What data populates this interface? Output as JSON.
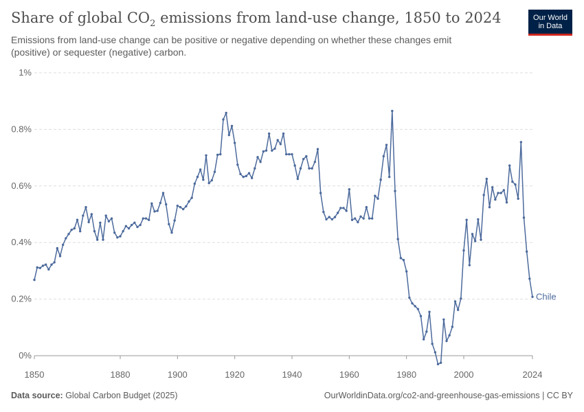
{
  "header": {
    "title_main": "Share of global CO",
    "title_sub": "2",
    "title_rest": " emissions from land-use change, 1850 to 2024",
    "subtitle": "Emissions from land-use change can be positive or negative depending on whether these changes emit (positive) or sequester (negative) carbon.",
    "logo_line1": "Our World",
    "logo_line2": "in Data"
  },
  "footer": {
    "source_label": "Data source:",
    "source_value": " Global Carbon Budget (2025)",
    "url": "OurWorldinData.org/co2-and-greenhouse-gas-emissions | CC BY"
  },
  "colors": {
    "series": "#4c6a9c",
    "grid": "#dddddd",
    "axis": "#999999"
  },
  "chart_data": {
    "type": "line",
    "title": "Share of global CO2 emissions from land-use change, 1850 to 2024",
    "xlabel": "",
    "ylabel": "",
    "xlim": [
      1850,
      2024
    ],
    "ylim": [
      0,
      1
    ],
    "x_ticks": [
      1850,
      1880,
      1900,
      1920,
      1940,
      1960,
      1980,
      2000,
      2024
    ],
    "x_tick_labels": [
      "1850",
      "1880",
      "1900",
      "1920",
      "1940",
      "1960",
      "1980",
      "2000",
      "2024"
    ],
    "y_ticks": [
      0,
      0.2,
      0.4,
      0.6,
      0.8,
      1
    ],
    "y_tick_labels": [
      "0%",
      "0.2%",
      "0.4%",
      "0.6%",
      "0.8%",
      "1%"
    ],
    "grid": "horizontal-dashed",
    "legend": "inline-end-label",
    "series": [
      {
        "name": "Chile",
        "x": [
          1850,
          1851,
          1852,
          1853,
          1854,
          1855,
          1856,
          1857,
          1858,
          1859,
          1860,
          1861,
          1862,
          1863,
          1864,
          1865,
          1866,
          1867,
          1868,
          1869,
          1870,
          1871,
          1872,
          1873,
          1874,
          1875,
          1876,
          1877,
          1878,
          1879,
          1880,
          1881,
          1882,
          1883,
          1884,
          1885,
          1886,
          1887,
          1888,
          1889,
          1890,
          1891,
          1892,
          1893,
          1894,
          1895,
          1896,
          1897,
          1898,
          1899,
          1900,
          1901,
          1902,
          1903,
          1904,
          1905,
          1906,
          1907,
          1908,
          1909,
          1910,
          1911,
          1912,
          1913,
          1914,
          1915,
          1916,
          1917,
          1918,
          1919,
          1920,
          1921,
          1922,
          1923,
          1924,
          1925,
          1926,
          1927,
          1928,
          1929,
          1930,
          1931,
          1932,
          1933,
          1934,
          1935,
          1936,
          1937,
          1938,
          1939,
          1940,
          1941,
          1942,
          1943,
          1944,
          1945,
          1946,
          1947,
          1948,
          1949,
          1950,
          1951,
          1952,
          1953,
          1954,
          1955,
          1956,
          1957,
          1958,
          1959,
          1960,
          1961,
          1962,
          1963,
          1964,
          1965,
          1966,
          1967,
          1968,
          1969,
          1970,
          1971,
          1972,
          1973,
          1974,
          1975,
          1976,
          1977,
          1978,
          1979,
          1980,
          1981,
          1982,
          1983,
          1984,
          1985,
          1986,
          1987,
          1988,
          1989,
          1990,
          1991,
          1992,
          1993,
          1994,
          1995,
          1996,
          1997,
          1998,
          1999,
          2000,
          2001,
          2002,
          2003,
          2004,
          2005,
          2006,
          2007,
          2008,
          2009,
          2010,
          2011,
          2012,
          2013,
          2014,
          2015,
          2016,
          2017,
          2018,
          2019,
          2020,
          2021,
          2022,
          2023,
          2024
        ],
        "values": [
          0.268,
          0.312,
          0.31,
          0.318,
          0.322,
          0.305,
          0.322,
          0.33,
          0.38,
          0.352,
          0.392,
          0.415,
          0.43,
          0.445,
          0.45,
          0.48,
          0.44,
          0.495,
          0.525,
          0.472,
          0.5,
          0.44,
          0.41,
          0.47,
          0.41,
          0.495,
          0.475,
          0.485,
          0.435,
          0.418,
          0.422,
          0.44,
          0.458,
          0.45,
          0.462,
          0.47,
          0.455,
          0.462,
          0.485,
          0.485,
          0.48,
          0.538,
          0.51,
          0.512,
          0.54,
          0.575,
          0.535,
          0.465,
          0.435,
          0.478,
          0.53,
          0.525,
          0.518,
          0.528,
          0.545,
          0.558,
          0.608,
          0.632,
          0.658,
          0.622,
          0.708,
          0.61,
          0.62,
          0.65,
          0.71,
          0.712,
          0.835,
          0.858,
          0.78,
          0.812,
          0.752,
          0.675,
          0.642,
          0.632,
          0.635,
          0.645,
          0.628,
          0.662,
          0.702,
          0.685,
          0.722,
          0.725,
          0.785,
          0.725,
          0.732,
          0.762,
          0.748,
          0.785,
          0.712,
          0.712,
          0.712,
          0.672,
          0.625,
          0.662,
          0.695,
          0.705,
          0.662,
          0.662,
          0.685,
          0.73,
          0.575,
          0.508,
          0.482,
          0.49,
          0.482,
          0.49,
          0.505,
          0.522,
          0.522,
          0.512,
          0.588,
          0.48,
          0.485,
          0.472,
          0.492,
          0.485,
          0.525,
          0.485,
          0.485,
          0.565,
          0.555,
          0.622,
          0.705,
          0.745,
          0.632,
          0.865,
          0.582,
          0.412,
          0.345,
          0.338,
          0.298,
          0.205,
          0.185,
          0.175,
          0.165,
          0.14,
          0.058,
          0.085,
          0.155,
          0.042,
          0.012,
          -0.03,
          -0.025,
          0.128,
          0.052,
          0.072,
          0.102,
          0.192,
          0.162,
          0.202,
          0.372,
          0.48,
          0.32,
          0.43,
          0.405,
          0.482,
          0.41,
          0.568,
          0.625,
          0.525,
          0.595,
          0.552,
          0.575,
          0.575,
          0.585,
          0.542,
          0.672,
          0.615,
          0.605,
          0.555,
          0.755,
          0.488,
          0.368,
          0.272,
          0.208
        ]
      }
    ]
  }
}
